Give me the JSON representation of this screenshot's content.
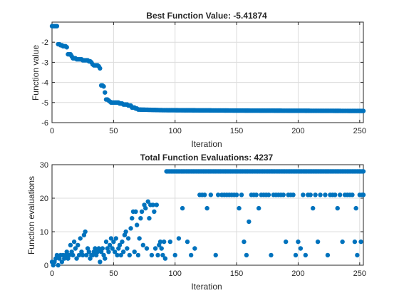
{
  "colors": {
    "marker": "#0072BD",
    "axis": "#262626",
    "grid": "#dcdcdc",
    "background": "#ffffff"
  },
  "chart_data": [
    {
      "type": "scatter",
      "title": "Best Function Value: -5.41874",
      "xlabel": "Iteration",
      "ylabel": "Function value",
      "xlim": [
        0,
        253
      ],
      "ylim": [
        -6,
        -1
      ],
      "xticks": [
        0,
        50,
        100,
        150,
        200,
        250
      ],
      "xtick_labels": [
        "0",
        "50",
        "100",
        "150",
        "200",
        "250"
      ],
      "yticks": [
        -6,
        -5,
        -4,
        -3,
        -2
      ],
      "ytick_labels": [
        "-6",
        "-5",
        "-4",
        "-3",
        "-2"
      ],
      "grid": true,
      "series": [
        {
          "knots": [
            [
              0,
              -1.2
            ],
            [
              1,
              -1.2
            ],
            [
              2,
              -1.2
            ],
            [
              3,
              -1.2
            ],
            [
              4,
              -1.2
            ],
            [
              5,
              -2.1
            ],
            [
              6,
              -2.1
            ],
            [
              7,
              -2.15
            ],
            [
              8,
              -2.15
            ],
            [
              9,
              -2.2
            ],
            [
              10,
              -2.2
            ],
            [
              11,
              -2.2
            ],
            [
              12,
              -2.25
            ],
            [
              13,
              -2.6
            ],
            [
              14,
              -2.6
            ],
            [
              15,
              -2.6
            ],
            [
              16,
              -2.7
            ],
            [
              17,
              -2.8
            ],
            [
              18,
              -2.8
            ],
            [
              19,
              -2.8
            ],
            [
              20,
              -2.85
            ],
            [
              25,
              -2.9
            ],
            [
              30,
              -2.95
            ],
            [
              32,
              -3.0
            ],
            [
              33,
              -3.1
            ],
            [
              34,
              -3.15
            ],
            [
              35,
              -3.15
            ],
            [
              38,
              -3.2
            ],
            [
              39,
              -3.3
            ],
            [
              40,
              -4.15
            ],
            [
              42,
              -4.2
            ],
            [
              43,
              -4.5
            ],
            [
              44,
              -4.85
            ],
            [
              46,
              -4.9
            ],
            [
              47,
              -4.95
            ],
            [
              48,
              -5.0
            ],
            [
              55,
              -5.05
            ],
            [
              58,
              -5.1
            ],
            [
              62,
              -5.15
            ],
            [
              65,
              -5.25
            ],
            [
              68,
              -5.3
            ],
            [
              70,
              -5.35
            ],
            [
              90,
              -5.38
            ],
            [
              150,
              -5.4
            ],
            [
              253,
              -5.41874
            ]
          ]
        }
      ]
    },
    {
      "type": "scatter",
      "title": "Total Function Evaluations: 4237",
      "xlabel": "Iteration",
      "ylabel": "Function evaluations",
      "xlim": [
        0,
        253
      ],
      "ylim": [
        0,
        30
      ],
      "xticks": [
        0,
        50,
        100,
        150,
        200,
        250
      ],
      "xtick_labels": [
        "0",
        "50",
        "100",
        "150",
        "200",
        "250"
      ],
      "yticks": [
        0,
        10,
        20,
        30
      ],
      "ytick_labels": [
        "0",
        "10",
        "20",
        "30"
      ],
      "grid": true,
      "series": [
        {
          "early": [
            [
              0,
              1
            ],
            [
              1,
              0
            ],
            [
              2,
              1
            ],
            [
              3,
              2
            ],
            [
              4,
              3
            ],
            [
              5,
              0
            ],
            [
              6,
              2
            ],
            [
              7,
              3
            ],
            [
              8,
              1
            ],
            [
              9,
              3
            ],
            [
              10,
              2
            ],
            [
              11,
              3
            ],
            [
              12,
              4
            ],
            [
              13,
              2
            ],
            [
              14,
              3
            ],
            [
              15,
              6
            ],
            [
              16,
              4
            ],
            [
              17,
              3
            ],
            [
              18,
              7
            ],
            [
              19,
              5
            ],
            [
              20,
              2
            ],
            [
              21,
              6
            ],
            [
              22,
              3
            ],
            [
              23,
              8
            ],
            [
              24,
              4
            ],
            [
              25,
              3
            ],
            [
              26,
              9
            ],
            [
              27,
              10
            ],
            [
              28,
              3
            ],
            [
              29,
              5
            ],
            [
              30,
              4
            ],
            [
              31,
              2
            ],
            [
              32,
              3
            ],
            [
              33,
              3
            ],
            [
              34,
              4
            ],
            [
              35,
              5
            ],
            [
              36,
              3
            ],
            [
              37,
              4
            ],
            [
              38,
              5
            ],
            [
              39,
              1
            ],
            [
              40,
              4
            ],
            [
              41,
              5
            ],
            [
              42,
              3
            ],
            [
              43,
              2
            ],
            [
              44,
              7
            ],
            [
              45,
              5
            ],
            [
              46,
              4
            ],
            [
              47,
              6
            ],
            [
              48,
              8
            ],
            [
              49,
              5
            ],
            [
              50,
              7
            ],
            [
              51,
              4
            ],
            [
              52,
              8
            ],
            [
              53,
              3
            ],
            [
              54,
              5
            ],
            [
              55,
              6
            ],
            [
              56,
              3
            ],
            [
              57,
              7
            ],
            [
              58,
              4
            ],
            [
              59,
              9
            ],
            [
              60,
              10
            ],
            [
              61,
              5
            ],
            [
              62,
              8
            ],
            [
              63,
              3
            ],
            [
              64,
              11
            ],
            [
              65,
              14
            ],
            [
              66,
              16
            ],
            [
              67,
              4
            ],
            [
              68,
              16
            ],
            [
              69,
              12
            ],
            [
              70,
              3
            ],
            [
              71,
              8
            ],
            [
              72,
              14
            ],
            [
              73,
              16
            ],
            [
              74,
              6
            ],
            [
              75,
              18
            ],
            [
              76,
              17
            ],
            [
              77,
              5
            ],
            [
              78,
              19
            ],
            [
              79,
              14
            ],
            [
              80,
              18
            ],
            [
              81,
              3
            ],
            [
              82,
              18
            ],
            [
              83,
              16
            ],
            [
              84,
              5
            ],
            [
              85,
              18
            ],
            [
              86,
              3
            ],
            [
              87,
              6
            ],
            [
              88,
              7
            ],
            [
              89,
              5
            ],
            [
              90,
              3
            ],
            [
              91,
              7
            ],
            [
              92,
              2
            ]
          ],
          "constant_from": 93,
          "constant_value": 28,
          "extras": [
            [
              96,
              7
            ],
            [
              100,
              3
            ],
            [
              103,
              8
            ],
            [
              106,
              17
            ],
            [
              110,
              7
            ],
            [
              113,
              3
            ],
            [
              116,
              5
            ],
            [
              120,
              21
            ],
            [
              122,
              21
            ],
            [
              124,
              21
            ],
            [
              126,
              17
            ],
            [
              129,
              21
            ],
            [
              133,
              3
            ],
            [
              135,
              21
            ],
            [
              138,
              21
            ],
            [
              140,
              21
            ],
            [
              142,
              21
            ],
            [
              144,
              21
            ],
            [
              146,
              21
            ],
            [
              148,
              21
            ],
            [
              150,
              21
            ],
            [
              152,
              17
            ],
            [
              154,
              21
            ],
            [
              156,
              7
            ],
            [
              158,
              3
            ],
            [
              160,
              13
            ],
            [
              162,
              21
            ],
            [
              164,
              21
            ],
            [
              166,
              21
            ],
            [
              168,
              17
            ],
            [
              170,
              21
            ],
            [
              172,
              21
            ],
            [
              174,
              21
            ],
            [
              176,
              21
            ],
            [
              178,
              3
            ],
            [
              180,
              21
            ],
            [
              182,
              21
            ],
            [
              184,
              21
            ],
            [
              186,
              21
            ],
            [
              188,
              21
            ],
            [
              190,
              7
            ],
            [
              192,
              21
            ],
            [
              194,
              21
            ],
            [
              196,
              21
            ],
            [
              198,
              3
            ],
            [
              200,
              7
            ],
            [
              202,
              5
            ],
            [
              204,
              21
            ],
            [
              206,
              3
            ],
            [
              208,
              21
            ],
            [
              210,
              21
            ],
            [
              212,
              17
            ],
            [
              214,
              21
            ],
            [
              216,
              7
            ],
            [
              218,
              21
            ],
            [
              222,
              21
            ],
            [
              224,
              3
            ],
            [
              226,
              21
            ],
            [
              228,
              21
            ],
            [
              230,
              21
            ],
            [
              232,
              17
            ],
            [
              234,
              21
            ],
            [
              236,
              7
            ],
            [
              238,
              21
            ],
            [
              240,
              21
            ],
            [
              242,
              21
            ],
            [
              244,
              21
            ],
            [
              246,
              7
            ],
            [
              247,
              17
            ],
            [
              248,
              3
            ],
            [
              250,
              21
            ],
            [
              251,
              7
            ],
            [
              252,
              21
            ],
            [
              253,
              21
            ]
          ]
        }
      ]
    }
  ]
}
